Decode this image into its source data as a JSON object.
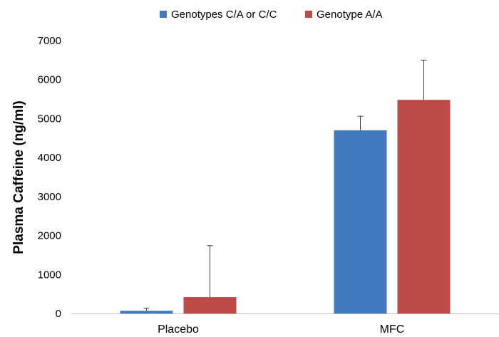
{
  "chart_data": {
    "type": "bar",
    "title": "",
    "xlabel": "",
    "ylabel": "Plasma Caffeine (ng/ml)",
    "ylim": [
      0,
      7000
    ],
    "yticks": [
      0,
      1000,
      2000,
      3000,
      4000,
      5000,
      6000,
      7000
    ],
    "grid": false,
    "legend_position": "top",
    "categories": [
      "Placebo",
      "MFC"
    ],
    "series": [
      {
        "name": "Genotypes C/A or C/C",
        "color": "#4279BE",
        "values": [
          70,
          4700
        ],
        "error": [
          70,
          360
        ]
      },
      {
        "name": "Genotype A/A",
        "color": "#BE4B48",
        "values": [
          420,
          5480
        ],
        "error": [
          1320,
          1020
        ]
      }
    ]
  }
}
